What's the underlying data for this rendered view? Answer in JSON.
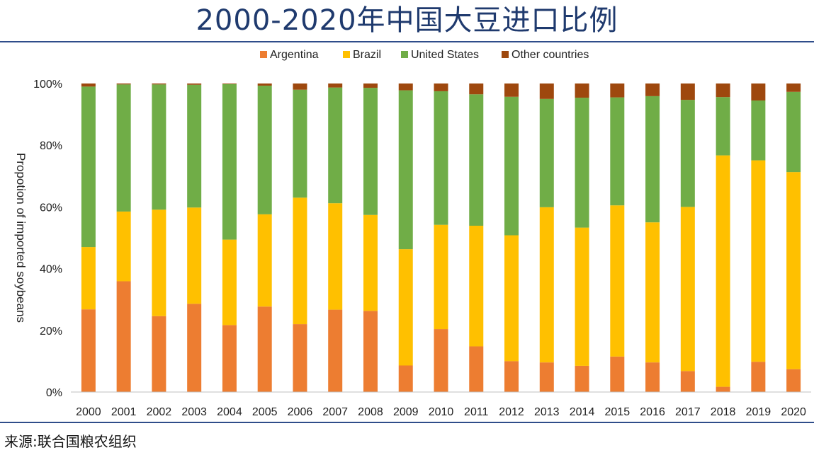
{
  "title": "2000-2020年中国大豆进口比例",
  "source": "来源:联合国粮农组织",
  "chart_data": {
    "type": "bar",
    "stacked": true,
    "title": "2000-2020年中国大豆进口比例",
    "xlabel": "",
    "ylabel": "Propotion of imported soybeans",
    "ylim": [
      0,
      100
    ],
    "yticks": [
      "0%",
      "20%",
      "40%",
      "60%",
      "80%",
      "100%"
    ],
    "legend_position": "top",
    "categories": [
      "2000",
      "2001",
      "2002",
      "2003",
      "2004",
      "2005",
      "2006",
      "2007",
      "2008",
      "2009",
      "2010",
      "2011",
      "2012",
      "2013",
      "2014",
      "2015",
      "2016",
      "2017",
      "2018",
      "2019",
      "2020"
    ],
    "series": [
      {
        "name": "Argentina",
        "color": "#ED7D31",
        "values": [
          26.8,
          35.9,
          24.6,
          28.6,
          21.7,
          27.7,
          22.0,
          26.7,
          26.3,
          8.6,
          20.4,
          14.8,
          10.0,
          9.6,
          8.5,
          11.5,
          9.6,
          6.8,
          1.7,
          9.8,
          7.4
        ]
      },
      {
        "name": "Brazil",
        "color": "#FFC000",
        "values": [
          20.2,
          22.6,
          34.5,
          31.2,
          27.7,
          29.9,
          41.0,
          34.5,
          31.1,
          37.7,
          33.8,
          39.1,
          40.8,
          50.3,
          44.8,
          49.0,
          45.4,
          53.2,
          75.0,
          65.3,
          63.9
        ]
      },
      {
        "name": "United States",
        "color": "#70AD47",
        "values": [
          52.0,
          41.2,
          40.6,
          39.8,
          50.4,
          41.7,
          35.0,
          37.5,
          41.2,
          51.5,
          43.3,
          42.6,
          44.9,
          35.1,
          42.1,
          35.0,
          40.9,
          34.7,
          18.9,
          19.4,
          26.0
        ]
      },
      {
        "name": "Other countries",
        "color": "#9E480E",
        "values": [
          1.0,
          0.3,
          0.3,
          0.4,
          0.2,
          0.7,
          2.0,
          1.3,
          1.4,
          2.2,
          2.5,
          3.5,
          4.3,
          5.0,
          4.6,
          4.5,
          4.1,
          5.3,
          4.4,
          5.5,
          2.7
        ]
      }
    ]
  }
}
